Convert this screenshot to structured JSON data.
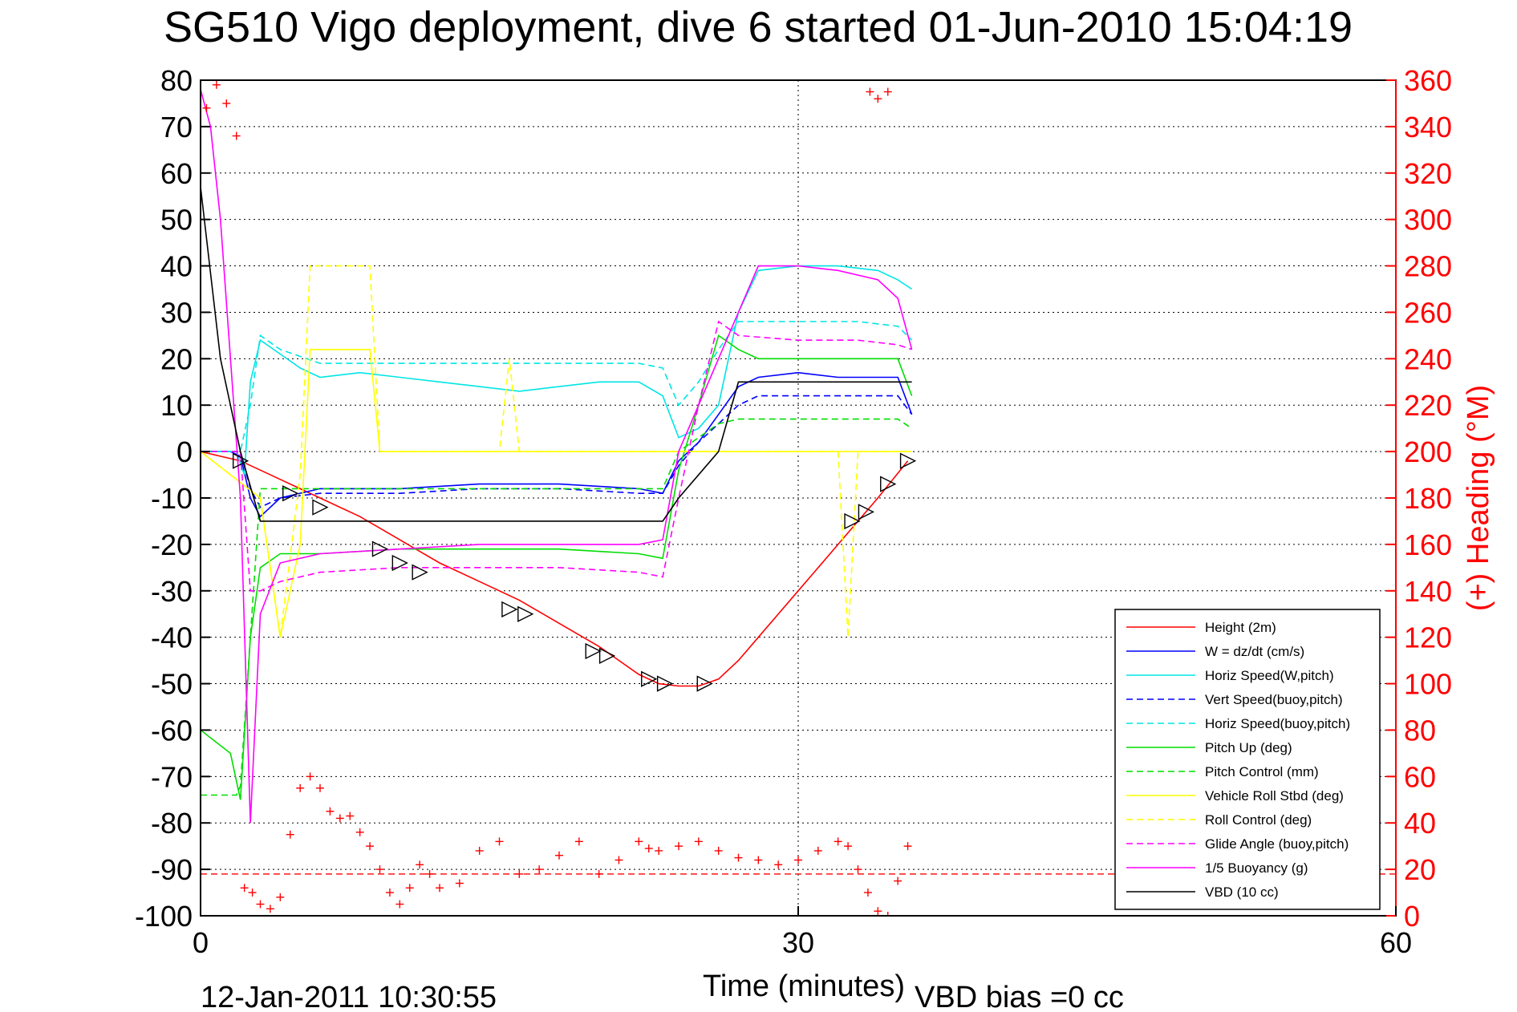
{
  "chart_data": {
    "type": "line",
    "title": "SG510 Vigo deployment, dive 6 started 01-Jun-2010 15:04:19",
    "xlabel": "Time (minutes)",
    "ylabel": "",
    "y2label": "(+) Heading (°M)",
    "xlim": [
      0,
      60
    ],
    "ylim": [
      -100,
      80
    ],
    "y2lim": [
      0,
      360
    ],
    "xticks": [
      "0",
      "30",
      "60"
    ],
    "yticks": [
      "80",
      "70",
      "60",
      "50",
      "40",
      "30",
      "20",
      "10",
      "0",
      "-10",
      "-20",
      "-30",
      "-40",
      "-50",
      "-60",
      "-70",
      "-80",
      "-90",
      "-100"
    ],
    "y2ticks": [
      "360",
      "340",
      "320",
      "300",
      "280",
      "260",
      "240",
      "220",
      "200",
      "180",
      "160",
      "140",
      "120",
      "100",
      "80",
      "60",
      "40",
      "20",
      "0"
    ],
    "grid": true,
    "legend_position": "bottom-right",
    "footer_left": "12-Jan-2011 10:30:55",
    "footer_right": "VBD bias =0 cc",
    "series": [
      {
        "name": "Height (2m)",
        "color": "#ff0000",
        "style": "solid",
        "x": [
          0,
          2,
          4,
          6,
          8,
          10,
          12,
          14,
          16,
          18,
          20,
          22,
          23,
          24,
          25,
          26,
          27,
          28,
          30,
          32,
          34,
          35.5
        ],
        "y": [
          0,
          -2,
          -6,
          -10,
          -14,
          -19,
          -24,
          -28,
          -32,
          -37,
          -42,
          -48,
          -50,
          -50.5,
          -50.5,
          -49,
          -45,
          -40,
          -30,
          -20,
          -10,
          -2
        ]
      },
      {
        "name": "W = dz/dt (cm/s)",
        "color": "#0000ff",
        "style": "solid",
        "x": [
          0,
          1.5,
          2,
          2.5,
          3,
          4,
          6,
          10,
          14,
          18,
          22,
          23.2,
          24,
          25,
          26,
          27,
          28,
          30,
          32,
          35,
          35.7
        ],
        "y": [
          0,
          0,
          -1,
          -10,
          -14,
          -10,
          -8,
          -8,
          -7,
          -7,
          -8,
          -9,
          -2,
          2,
          8,
          14,
          16,
          17,
          16,
          16,
          8
        ]
      },
      {
        "name": "Horiz Speed(W,pitch)",
        "color": "#00e5e5",
        "style": "solid",
        "x": [
          0,
          1.8,
          2.2,
          2.5,
          3,
          4,
          5,
          6,
          8,
          10,
          12,
          14,
          16,
          18,
          20,
          22,
          23.2,
          24,
          25,
          26,
          27,
          28,
          30,
          32,
          34,
          35,
          35.7
        ],
        "y": [
          0,
          0,
          -5,
          15,
          24,
          21,
          18,
          16,
          17,
          16,
          15,
          14,
          13,
          14,
          15,
          15,
          12,
          3,
          5,
          10,
          30,
          39,
          40,
          40,
          39,
          37,
          35
        ]
      },
      {
        "name": "Vert Speed(buoy,pitch)",
        "color": "#0000ff",
        "style": "dashed",
        "x": [
          0,
          2,
          2.5,
          3,
          4,
          6,
          10,
          14,
          18,
          22,
          23.2,
          24,
          25,
          26,
          27,
          28,
          30,
          32,
          35,
          35.7
        ],
        "y": [
          0,
          0,
          -8,
          -12,
          -10,
          -9,
          -9,
          -8,
          -8,
          -9,
          -9,
          -3,
          2,
          6,
          10,
          12,
          12,
          12,
          12,
          8
        ]
      },
      {
        "name": "Horiz Speed(buoy,pitch)",
        "color": "#00e5e5",
        "style": "dashed",
        "x": [
          0,
          2,
          2.5,
          3,
          4,
          6,
          10,
          14,
          18,
          22,
          23.2,
          24,
          25,
          26,
          27,
          30,
          33,
          35,
          35.7
        ],
        "y": [
          0,
          0,
          10,
          25,
          22,
          19,
          19,
          19,
          19,
          19,
          18,
          10,
          15,
          22,
          28,
          28,
          28,
          27,
          24
        ]
      },
      {
        "name": "Pitch Up (deg)",
        "color": "#00dd00",
        "style": "solid",
        "x": [
          0,
          1.5,
          2,
          2.5,
          3,
          4,
          6,
          10,
          14,
          18,
          22,
          23.2,
          24,
          25,
          26,
          27,
          28,
          30,
          32,
          35,
          35.7
        ],
        "y": [
          -60,
          -65,
          -75,
          -40,
          -25,
          -22,
          -22,
          -21,
          -21,
          -21,
          -22,
          -23,
          -4,
          10,
          25,
          22,
          20,
          20,
          20,
          20,
          12
        ]
      },
      {
        "name": "Pitch Control (mm)",
        "color": "#00dd00",
        "style": "dashed",
        "x": [
          0,
          1.8,
          2,
          2.5,
          3,
          6,
          10,
          14,
          18,
          22,
          23.2,
          24,
          25,
          26,
          27,
          30,
          35,
          35.7
        ],
        "y": [
          -74,
          -74,
          -72,
          -40,
          -8,
          -8,
          -8,
          -8,
          -8,
          -8,
          -8,
          0,
          3,
          6,
          7,
          7,
          7,
          5
        ]
      },
      {
        "name": "Vehicle Roll Stbd (deg)",
        "color": "#ffff00",
        "style": "solid",
        "x": [
          0,
          3,
          4,
          5,
          5.5,
          8.5,
          9,
          10,
          15,
          15.5,
          20,
          20.5,
          23,
          27,
          30,
          35,
          35.7
        ],
        "y": [
          0,
          -10,
          -40,
          -20,
          22,
          22,
          0,
          0,
          0,
          0,
          0,
          0,
          0,
          0,
          0,
          0,
          0
        ]
      },
      {
        "name": "Roll Control (deg)",
        "color": "#ffff00",
        "style": "dashed",
        "x": [
          0,
          3,
          4,
          5,
          5.5,
          8.5,
          9,
          10,
          15,
          15.5,
          16,
          20,
          20.5,
          23,
          27,
          30,
          32,
          32.5,
          33,
          35,
          35.7
        ],
        "y": [
          0,
          -10,
          -40,
          -5,
          40,
          40,
          0,
          0,
          0,
          20,
          0,
          0,
          0,
          0,
          0,
          0,
          0,
          -40,
          0,
          0,
          0
        ]
      },
      {
        "name": "Glide Angle (buoy,pitch)",
        "color": "#ff00ff",
        "style": "dashed",
        "x": [
          0,
          2,
          2.5,
          3,
          4,
          6,
          10,
          14,
          18,
          22,
          23.2,
          24,
          25,
          26,
          27,
          30,
          33,
          35,
          35.7
        ],
        "y": [
          0,
          0,
          -30,
          -30,
          -28,
          -26,
          -25,
          -25,
          -25,
          -26,
          -27,
          -10,
          10,
          28,
          25,
          24,
          24,
          23,
          22
        ]
      },
      {
        "name": "1/5 Buoyancy (g)",
        "color": "#ff00ff",
        "style": "solid",
        "x": [
          0,
          0.5,
          1,
          1.5,
          2,
          2.5,
          3,
          4,
          6,
          10,
          14,
          18,
          22,
          23.2,
          24,
          26,
          28,
          30,
          32,
          34,
          35,
          35.7
        ],
        "y": [
          78,
          70,
          50,
          20,
          -10,
          -80,
          -35,
          -24,
          -22,
          -21,
          -20,
          -20,
          -20,
          -19,
          0,
          20,
          40,
          40,
          39,
          37,
          33,
          22
        ]
      },
      {
        "name": "VBD (10 cc)",
        "color": "#000000",
        "style": "solid",
        "x": [
          0,
          1,
          2,
          3,
          4,
          10,
          15,
          20,
          23.2,
          24,
          26,
          27,
          30,
          33,
          35.7
        ],
        "y": [
          57,
          20,
          0,
          -15,
          -15,
          -15,
          -15,
          -15,
          -15,
          -10,
          0,
          15,
          15,
          15,
          15
        ]
      }
    ],
    "heading": {
      "name": "(+) Heading (°M)",
      "color": "#ff0000",
      "mean": 18,
      "x": [
        0.3,
        0.8,
        1.3,
        1.8,
        2.2,
        2.6,
        3,
        3.5,
        4,
        4.5,
        5,
        5.5,
        6,
        6.5,
        7,
        7.5,
        8,
        8.5,
        9,
        9.5,
        10,
        10.5,
        11,
        11.5,
        12,
        13,
        14,
        15,
        16,
        17,
        18,
        19,
        20,
        21,
        22,
        22.5,
        23,
        24,
        25,
        26,
        27,
        28,
        29,
        30,
        31,
        32,
        32.5,
        33,
        33.5,
        34,
        34.5,
        35,
        35.5
      ],
      "y": [
        348,
        358,
        350,
        336,
        12,
        10,
        5,
        3,
        8,
        35,
        55,
        60,
        55,
        45,
        42,
        43,
        36,
        30,
        20,
        10,
        5,
        12,
        22,
        18,
        12,
        14,
        28,
        32,
        18,
        20,
        26,
        32,
        18,
        24,
        32,
        29,
        28,
        30,
        32,
        28,
        25,
        24,
        22,
        24,
        28,
        32,
        30,
        20,
        10,
        2,
        0,
        15,
        30
      ]
    },
    "heading_top_cluster": {
      "x": [
        33.6,
        34.0,
        34.5
      ],
      "y": [
        355,
        352,
        355
      ]
    },
    "markers": {
      "x": [
        2,
        4.5,
        6,
        9,
        10,
        11,
        15.5,
        16.3,
        19.7,
        20.4,
        22.5,
        23.3,
        25.3,
        32.7,
        33.4,
        34.5,
        35.5
      ],
      "y": [
        -2,
        -9,
        -12,
        -21,
        -24,
        -26,
        -34,
        -35,
        -43,
        -44,
        -49,
        -50,
        -50,
        -15,
        -13,
        -7,
        -2
      ]
    }
  }
}
